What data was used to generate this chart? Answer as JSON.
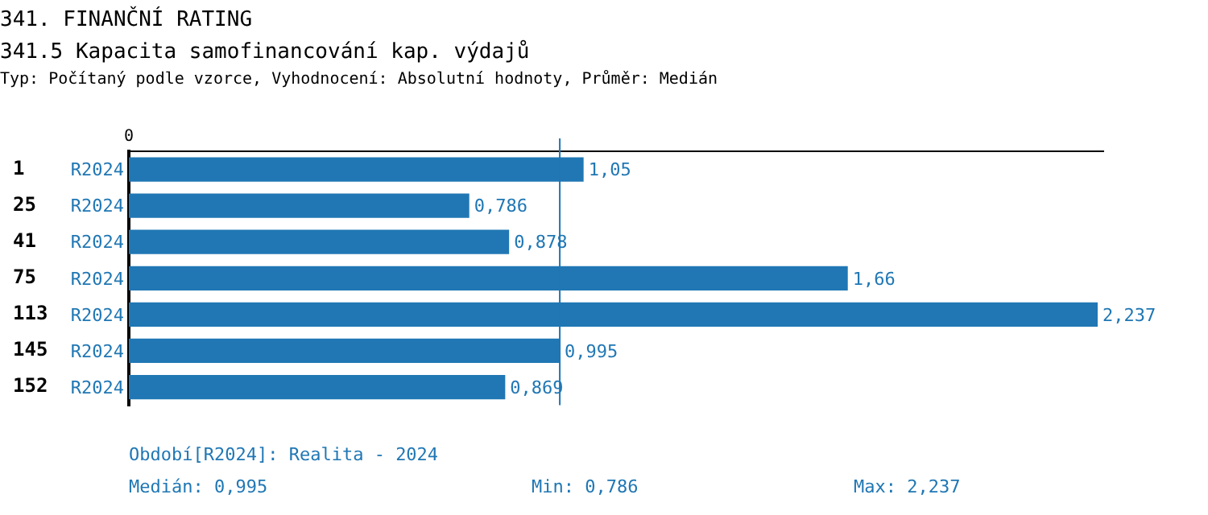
{
  "chart_data": {
    "type": "bar",
    "orientation": "horizontal",
    "title": "341. FINANČNÍ RATING",
    "subtitle": "341.5 Kapacita samofinancování kap. výdajů",
    "categories": [
      "1",
      "25",
      "41",
      "75",
      "113",
      "145",
      "152"
    ],
    "series": [
      {
        "name": "R2024",
        "color": "#2077b4",
        "values": [
          1.05,
          0.786,
          0.878,
          1.66,
          2.237,
          0.995,
          0.869
        ],
        "value_labels": [
          "1,05",
          "0,786",
          "0,878",
          "1,66",
          "2,237",
          "0,995",
          "0,869"
        ]
      }
    ],
    "xlim": [
      0,
      2.25
    ],
    "tick_labels": "y",
    "grid": false,
    "legend": false,
    "ref_lines": [
      {
        "axis": "x",
        "value": 0.995,
        "color": "#2077b4"
      }
    ],
    "annotations": [
      "Typ: Počítaný podle vzorce, Vyhodnocení: Absolutní hodnoty, Průměr: Medián",
      "Období[R2024]: Realita - 2024",
      "Medián: 0,995",
      "Min: 0,786",
      "Max: 2,237",
      "0"
    ]
  }
}
